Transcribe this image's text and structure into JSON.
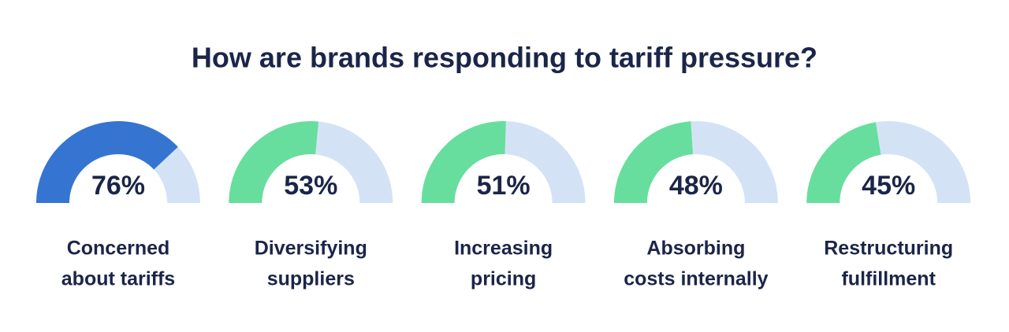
{
  "chart_data": {
    "type": "gauge",
    "title": "How are brands responding to tariff pressure?",
    "categories": [
      [
        "Concerned",
        "about tariffs"
      ],
      [
        "Diversifying",
        "suppliers"
      ],
      [
        "Increasing",
        "pricing"
      ],
      [
        "Absorbing",
        "costs internally"
      ],
      [
        "Restructuring",
        "fulfillment"
      ]
    ],
    "values": [
      76,
      53,
      51,
      48,
      45
    ],
    "value_labels": [
      "76%",
      "53%",
      "51%",
      "48%",
      "45%"
    ],
    "colors": [
      "#3574d1",
      "#67de9d",
      "#67de9d",
      "#67de9d",
      "#67de9d"
    ],
    "track_color": "#d3e3f5",
    "ylim": [
      0,
      100
    ]
  }
}
